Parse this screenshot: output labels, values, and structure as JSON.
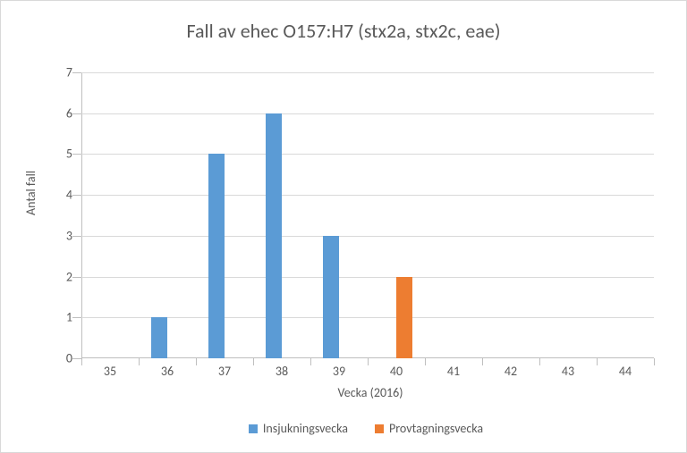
{
  "chart": {
    "type": "bar",
    "title": "Fall av ehec O157:H7 (stx2a, stx2c, eae)",
    "title_fontsize": 22,
    "title_color": "#595959",
    "x_axis_title": "Vecka (2016)",
    "y_axis_title": "Antal fall",
    "axis_title_fontsize": 14,
    "axis_label_fontsize": 14,
    "axis_label_color": "#595959",
    "background_color": "#ffffff",
    "border_color": "#d9d9d9",
    "grid_color": "#d9d9d9",
    "axis_line_color": "#bfbfbf",
    "ylim": [
      0,
      7
    ],
    "ytick_step": 1,
    "yticks": [
      0,
      1,
      2,
      3,
      4,
      5,
      6,
      7
    ],
    "categories": [
      35,
      36,
      37,
      38,
      39,
      40,
      41,
      42,
      43,
      44
    ],
    "bar_group_width": 0.56,
    "series": [
      {
        "name": "Insjukningsvecka",
        "color": "#5b9bd5",
        "values": [
          0,
          1,
          5,
          6,
          3,
          0,
          0,
          0,
          0,
          0
        ]
      },
      {
        "name": "Provtagningsvecka",
        "color": "#ed7d31",
        "values": [
          0,
          0,
          0,
          0,
          0,
          2,
          0,
          0,
          0,
          0
        ]
      }
    ],
    "legend_position": "bottom"
  }
}
